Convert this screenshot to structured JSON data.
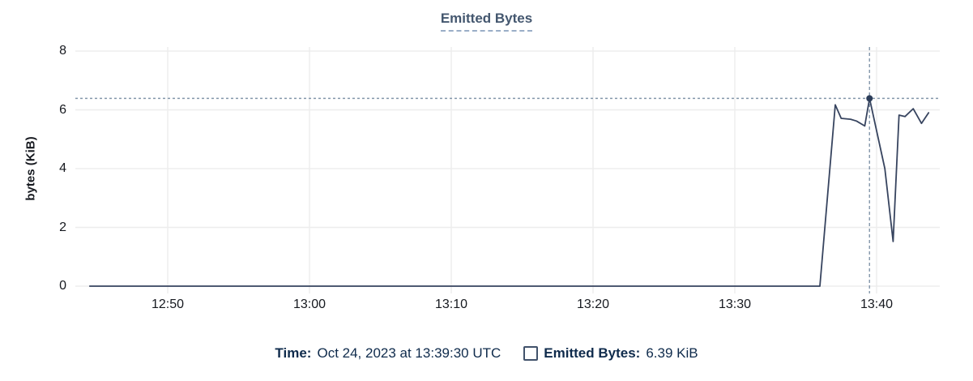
{
  "chart_data": {
    "type": "line",
    "title": "Emitted Bytes",
    "xlabel": "",
    "ylabel": "bytes (KiB)",
    "ylim": [
      0,
      8
    ],
    "yticks": [
      0,
      2,
      4,
      6,
      8
    ],
    "xticks": [
      "12:50",
      "13:00",
      "13:10",
      "13:20",
      "13:30",
      "13:40"
    ],
    "x_range": [
      "12:44:30",
      "13:43:40"
    ],
    "grid": true,
    "legend_position": "bottom",
    "series": [
      {
        "name": "Emitted Bytes",
        "unit": "KiB",
        "points": [
          [
            "12:44:30",
            0
          ],
          [
            "13:36:00",
            0
          ],
          [
            "13:37:05",
            6.17
          ],
          [
            "13:37:30",
            5.71
          ],
          [
            "13:38:10",
            5.68
          ],
          [
            "13:38:35",
            5.62
          ],
          [
            "13:39:10",
            5.45
          ],
          [
            "13:39:30",
            6.39
          ],
          [
            "13:40:35",
            4.0
          ],
          [
            "13:41:10",
            1.52
          ],
          [
            "13:41:35",
            5.82
          ],
          [
            "13:42:00",
            5.77
          ],
          [
            "13:42:35",
            6.04
          ],
          [
            "13:43:10",
            5.54
          ],
          [
            "13:43:40",
            5.9
          ]
        ]
      }
    ],
    "highlight": {
      "time": "13:39:30",
      "value": 6.39,
      "crosshair": true
    }
  },
  "legend": {
    "time_label": "Time:",
    "time_value": "Oct 24, 2023 at 13:39:30 UTC",
    "series_label": "Emitted Bytes:",
    "series_value": "6.39 KiB",
    "checkbox_checked": false
  },
  "colors": {
    "line": "#37445f",
    "marker": "#2c3d59",
    "crosshair": "#8396aa",
    "grid": "#ededed",
    "title": "#44576f",
    "underline": "#9aaec7",
    "legend_text": "#0f2b4c",
    "checkbox": "#41526b",
    "axis_text": "#16191f",
    "background": "#ffffff"
  }
}
